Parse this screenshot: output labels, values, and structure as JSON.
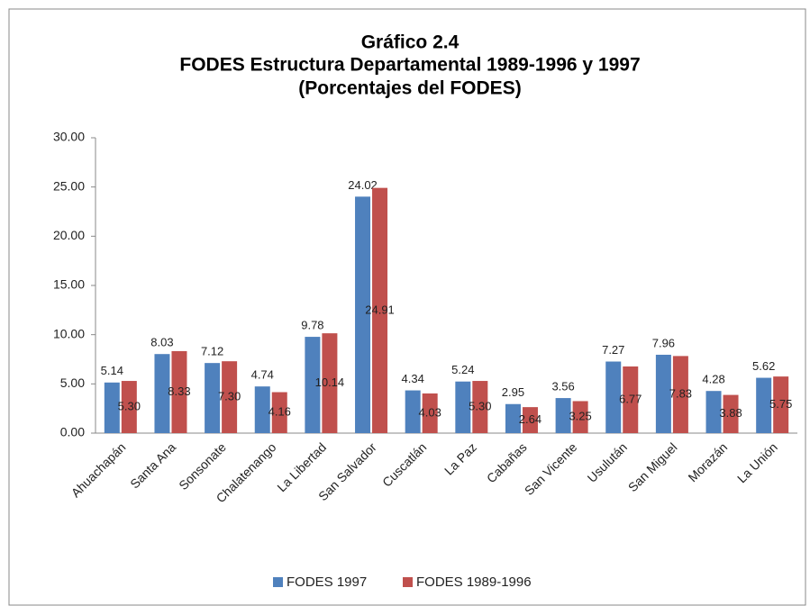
{
  "chart_data": {
    "type": "bar",
    "title": "Gráfico 2.4",
    "subtitle": "FODES Estructura Departamental 1989-1996 y 1997",
    "subtitle2": "(Porcentajes del FODES)",
    "categories": [
      "Ahuachapán",
      "Santa Ana",
      "Sonsonate",
      "Chalatenango",
      "La Libertad",
      "San Salvador",
      "Cuscatlán",
      "La Paz",
      "Cabañas",
      "San Vicente",
      "Usulután",
      "San Miguel",
      "Morazán",
      "La Unión"
    ],
    "series": [
      {
        "name": "FODES 1997",
        "color": "#4f81bd",
        "values": [
          5.14,
          8.03,
          7.12,
          4.74,
          9.78,
          24.02,
          4.34,
          5.24,
          2.95,
          3.56,
          7.27,
          7.96,
          4.28,
          5.62
        ],
        "value_labels": [
          "5.14",
          "8.03",
          "7.12",
          "4.74",
          "9.78",
          "24.02",
          "4.34",
          "5.24",
          "2.95",
          "3.56",
          "7.27",
          "7.96",
          "4.28",
          "5.62"
        ]
      },
      {
        "name": "FODES 1989-1996",
        "color": "#c0504d",
        "values": [
          5.3,
          8.33,
          7.3,
          4.16,
          10.14,
          24.91,
          4.03,
          5.3,
          2.64,
          3.25,
          6.77,
          7.83,
          3.88,
          5.75
        ],
        "value_labels": [
          "5.30",
          "8.33",
          "7.30",
          "4.16",
          "10.14",
          "24.91",
          "4.03",
          "5.30",
          "2.64",
          "3.25",
          "6.77",
          "7.83",
          "3.88",
          "5.75"
        ]
      }
    ],
    "ylim": [
      0,
      30
    ],
    "yticks": [
      {
        "value": 0,
        "label": "0.00"
      },
      {
        "value": 5,
        "label": "5.00"
      },
      {
        "value": 10,
        "label": "10.00"
      },
      {
        "value": 15,
        "label": "15.00"
      },
      {
        "value": 20,
        "label": "20.00"
      },
      {
        "value": 25,
        "label": "25.00"
      },
      {
        "value": 30,
        "label": "30.00"
      }
    ],
    "legend": "bottom"
  }
}
